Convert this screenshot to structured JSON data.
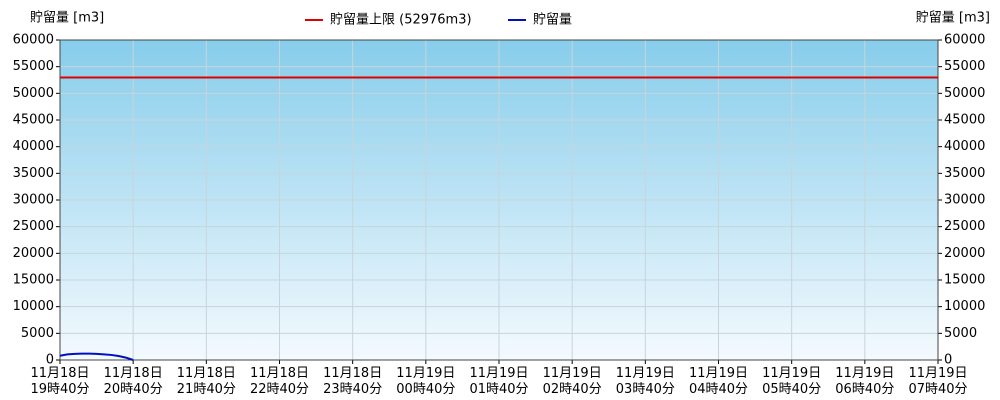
{
  "chart_data": {
    "type": "line",
    "y_label": "貯留量 [m3]",
    "y2_label": "貯留量 [m3]",
    "xlim": [
      0,
      12
    ],
    "xticks": [
      {
        "value": 0,
        "label": "11月18日\n19時40分"
      },
      {
        "value": 1,
        "label": "11月18日\n20時40分"
      },
      {
        "value": 2,
        "label": "11月18日\n21時40分"
      },
      {
        "value": 3,
        "label": "11月18日\n22時40分"
      },
      {
        "value": 4,
        "label": "11月18日\n23時40分"
      },
      {
        "value": 5,
        "label": "11月19日\n00時40分"
      },
      {
        "value": 6,
        "label": "11月19日\n01時40分"
      },
      {
        "value": 7,
        "label": "11月19日\n02時40分"
      },
      {
        "value": 8,
        "label": "11月19日\n03時40分"
      },
      {
        "value": 9,
        "label": "11月19日\n04時40分"
      },
      {
        "value": 10,
        "label": "11月19日\n05時40分"
      },
      {
        "value": 11,
        "label": "11月19日\n06時40分"
      },
      {
        "value": 12,
        "label": "11月19日\n07時40分"
      }
    ],
    "ylim": [
      0,
      60000
    ],
    "yticks": [
      0,
      5000,
      10000,
      15000,
      20000,
      25000,
      30000,
      35000,
      40000,
      45000,
      50000,
      55000,
      60000
    ],
    "y2lim": [
      0,
      60000
    ],
    "y2ticks": [
      0,
      5000,
      10000,
      15000,
      20000,
      25000,
      30000,
      35000,
      40000,
      45000,
      50000,
      55000,
      60000
    ],
    "grid": true,
    "limit": {
      "name": "貯留量上限 (52976m3)",
      "value": 52976,
      "color": "#e00000"
    },
    "series": [
      {
        "name": "貯留量",
        "color": "#0010c0",
        "x": [
          0,
          0.1,
          0.2,
          0.3,
          0.4,
          0.5,
          0.6,
          0.7,
          0.8,
          0.9,
          1.0
        ],
        "values": [
          800,
          1050,
          1150,
          1200,
          1200,
          1150,
          1050,
          950,
          750,
          450,
          0
        ]
      }
    ]
  }
}
